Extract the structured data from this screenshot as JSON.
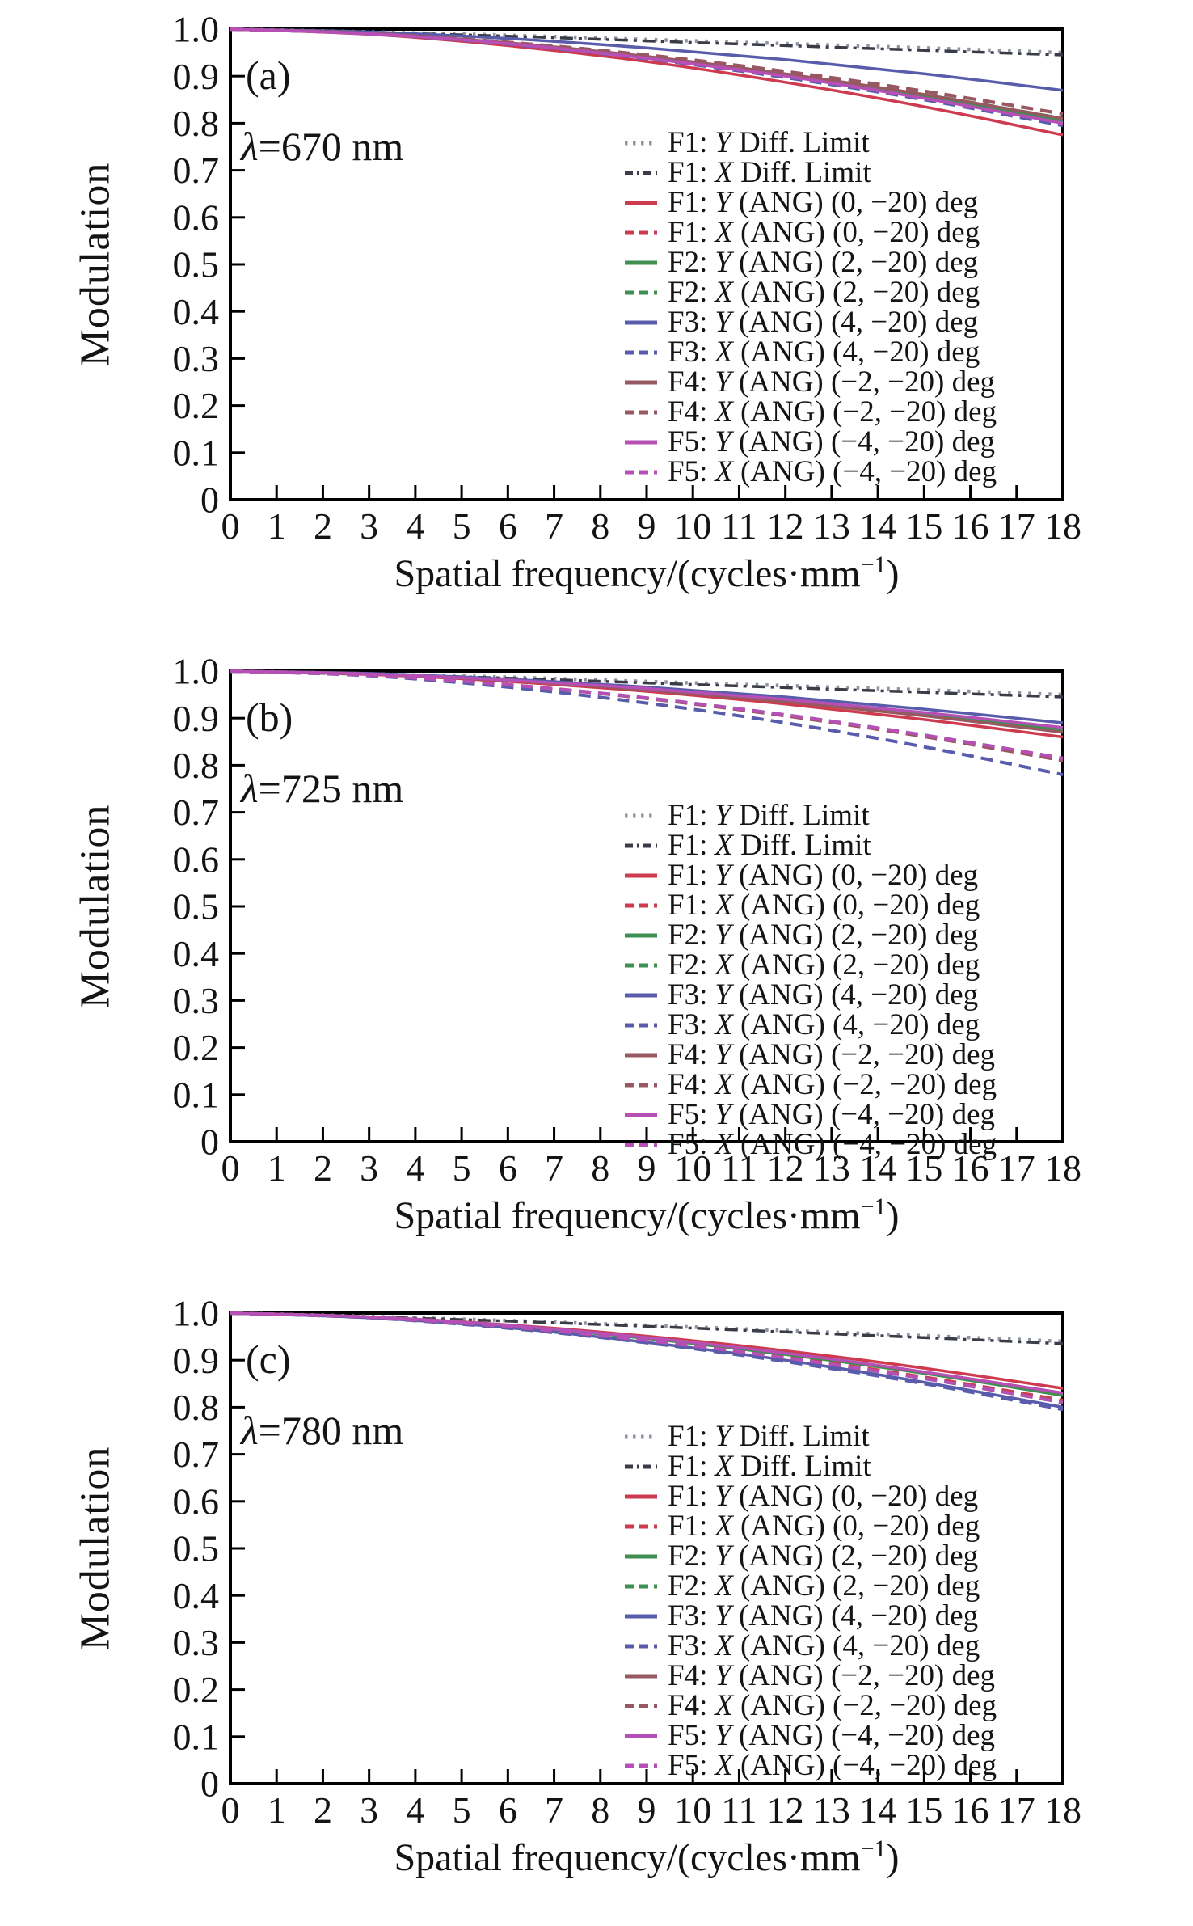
{
  "axes": {
    "y_label": "Modulation",
    "x_title_main": "Spatial frequency/(cycles·mm",
    "x_title_sup": "−1",
    "x_title_end": ")",
    "y_ticks": [
      "1.0",
      "0.9",
      "0.8",
      "0.7",
      "0.6",
      "0.5",
      "0.4",
      "0.3",
      "0.2",
      "0.1",
      "0"
    ],
    "x_ticks": [
      "0",
      "1",
      "2",
      "3",
      "4",
      "5",
      "6",
      "7",
      "8",
      "9",
      "10",
      "11",
      "12",
      "13",
      "14",
      "15",
      "16",
      "17",
      "18"
    ],
    "xlim": [
      0,
      18
    ],
    "ylim": [
      0,
      1
    ]
  },
  "legend": {
    "entries": [
      {
        "prefix": "F1:",
        "axis": "Y",
        "rest": "Diff. Limit",
        "color": "#9093a0",
        "dash": "dotted"
      },
      {
        "prefix": "F1:",
        "axis": "X",
        "rest": "Diff. Limit",
        "color": "#3a3d48",
        "dash": "dashdot"
      },
      {
        "prefix": "F1:",
        "axis": "Y",
        "rest": "(ANG) (0, −20) deg",
        "color": "#ce3a4e",
        "dash": "solid"
      },
      {
        "prefix": "F1:",
        "axis": "X",
        "rest": "(ANG) (0, −20) deg",
        "color": "#ce3a4e",
        "dash": "dashed"
      },
      {
        "prefix": "F2:",
        "axis": "Y",
        "rest": "(ANG) (2, −20) deg",
        "color": "#3f8e52",
        "dash": "solid"
      },
      {
        "prefix": "F2:",
        "axis": "X",
        "rest": "(ANG) (2, −20) deg",
        "color": "#3f8e52",
        "dash": "dashed"
      },
      {
        "prefix": "F3:",
        "axis": "Y",
        "rest": "(ANG) (4, −20) deg",
        "color": "#585cab",
        "dash": "solid"
      },
      {
        "prefix": "F3:",
        "axis": "X",
        "rest": "(ANG) (4, −20) deg",
        "color": "#585cab",
        "dash": "dashed"
      },
      {
        "prefix": "F4:",
        "axis": "Y",
        "rest": "(ANG) (−2, −20) deg",
        "color": "#975862",
        "dash": "solid"
      },
      {
        "prefix": "F4:",
        "axis": "X",
        "rest": "(ANG) (−2, −20) deg",
        "color": "#975862",
        "dash": "dashed"
      },
      {
        "prefix": "F5:",
        "axis": "Y",
        "rest": "(ANG) (−4, −20) deg",
        "color": "#b650b6",
        "dash": "solid"
      },
      {
        "prefix": "F5:",
        "axis": "X",
        "rest": "(ANG) (−4, −20) deg",
        "color": "#b650b6",
        "dash": "dashed"
      }
    ]
  },
  "chart_data": [
    {
      "type": "line",
      "panel_label": "(a)",
      "wavelength_symbol": "λ",
      "wavelength_rest": "=670 nm",
      "wavelength_nm": 670,
      "xlabel": "Spatial frequency/(cycles·mm−1)",
      "ylabel": "Modulation",
      "x": [
        0,
        3,
        6,
        9,
        12,
        15,
        18
      ],
      "xlim": [
        0,
        18
      ],
      "ylim": [
        0,
        1
      ],
      "series": [
        {
          "name": "F1: Y Diff. Limit",
          "legend_index": 0,
          "values": [
            1.0,
            0.994,
            0.987,
            0.978,
            0.969,
            0.96,
            0.95
          ]
        },
        {
          "name": "F1: X Diff. Limit",
          "legend_index": 1,
          "values": [
            1.0,
            0.993,
            0.985,
            0.975,
            0.965,
            0.955,
            0.945
          ]
        },
        {
          "name": "F1: Y (ANG) (0, −20) deg",
          "legend_index": 2,
          "values": [
            1.0,
            0.989,
            0.965,
            0.931,
            0.887,
            0.835,
            0.775
          ]
        },
        {
          "name": "F1: X (ANG) (0, −20) deg",
          "legend_index": 3,
          "values": [
            1.0,
            0.991,
            0.972,
            0.945,
            0.91,
            0.868,
            0.82
          ]
        },
        {
          "name": "F2: Y (ANG) (2, −20) deg",
          "legend_index": 4,
          "values": [
            1.0,
            0.991,
            0.97,
            0.94,
            0.902,
            0.857,
            0.805
          ]
        },
        {
          "name": "F2: X (ANG) (2, −20) deg",
          "legend_index": 5,
          "values": [
            1.0,
            0.991,
            0.971,
            0.942,
            0.905,
            0.861,
            0.81
          ]
        },
        {
          "name": "F3: Y (ANG) (4, −20) deg",
          "legend_index": 6,
          "values": [
            1.0,
            0.994,
            0.98,
            0.96,
            0.935,
            0.905,
            0.87
          ]
        },
        {
          "name": "F3: X (ANG) (4, −20) deg",
          "legend_index": 7,
          "values": [
            1.0,
            0.99,
            0.968,
            0.937,
            0.897,
            0.85,
            0.795
          ]
        },
        {
          "name": "F4: Y (ANG) (−2, −20) deg",
          "legend_index": 8,
          "values": [
            1.0,
            0.991,
            0.971,
            0.942,
            0.905,
            0.861,
            0.81
          ]
        },
        {
          "name": "F4: X (ANG) (−2, −20) deg",
          "legend_index": 9,
          "values": [
            1.0,
            0.991,
            0.972,
            0.945,
            0.91,
            0.868,
            0.82
          ]
        },
        {
          "name": "F5: Y (ANG) (−4, −20) deg",
          "legend_index": 10,
          "values": [
            1.0,
            0.99,
            0.969,
            0.938,
            0.9,
            0.853,
            0.8
          ]
        },
        {
          "name": "F5: X (ANG) (−4, −20) deg",
          "legend_index": 11,
          "values": [
            1.0,
            0.99,
            0.969,
            0.938,
            0.9,
            0.853,
            0.8
          ]
        }
      ]
    },
    {
      "type": "line",
      "panel_label": "(b)",
      "wavelength_symbol": "λ",
      "wavelength_rest": "=725 nm",
      "wavelength_nm": 725,
      "xlabel": "Spatial frequency/(cycles·mm−1)",
      "ylabel": "Modulation",
      "x": [
        0,
        3,
        6,
        9,
        12,
        15,
        18
      ],
      "xlim": [
        0,
        18
      ],
      "ylim": [
        0,
        1
      ],
      "series": [
        {
          "name": "F1: Y Diff. Limit",
          "legend_index": 0,
          "values": [
            1.0,
            0.994,
            0.987,
            0.978,
            0.969,
            0.96,
            0.95
          ]
        },
        {
          "name": "F1: X Diff. Limit",
          "legend_index": 1,
          "values": [
            1.0,
            0.993,
            0.985,
            0.975,
            0.965,
            0.955,
            0.945
          ]
        },
        {
          "name": "F1: Y (ANG) (0, −20) deg",
          "legend_index": 2,
          "values": [
            1.0,
            0.993,
            0.978,
            0.957,
            0.93,
            0.897,
            0.86
          ]
        },
        {
          "name": "F1: X (ANG) (0, −20) deg",
          "legend_index": 3,
          "values": [
            1.0,
            0.991,
            0.971,
            0.942,
            0.905,
            0.861,
            0.81
          ]
        },
        {
          "name": "F2: Y (ANG) (2, −20) deg",
          "legend_index": 4,
          "values": [
            1.0,
            0.994,
            0.981,
            0.962,
            0.937,
            0.908,
            0.875
          ]
        },
        {
          "name": "F2: X (ANG) (2, −20) deg",
          "legend_index": 5,
          "values": [
            1.0,
            0.991,
            0.971,
            0.943,
            0.907,
            0.864,
            0.815
          ]
        },
        {
          "name": "F3: Y (ANG) (4, −20) deg",
          "legend_index": 6,
          "values": [
            1.0,
            0.995,
            0.983,
            0.966,
            0.945,
            0.919,
            0.89
          ]
        },
        {
          "name": "F3: X (ANG) (4, −20) deg",
          "legend_index": 7,
          "values": [
            1.0,
            0.99,
            0.966,
            0.932,
            0.89,
            0.839,
            0.78
          ]
        },
        {
          "name": "F4: Y (ANG) (−2, −20) deg",
          "legend_index": 8,
          "values": [
            1.0,
            0.994,
            0.98,
            0.96,
            0.935,
            0.905,
            0.87
          ]
        },
        {
          "name": "F4: X (ANG) (−2, −20) deg",
          "legend_index": 9,
          "values": [
            1.0,
            0.991,
            0.971,
            0.942,
            0.905,
            0.861,
            0.81
          ]
        },
        {
          "name": "F5: Y (ANG) (−4, −20) deg",
          "legend_index": 10,
          "values": [
            1.0,
            0.994,
            0.981,
            0.963,
            0.94,
            0.912,
            0.88
          ]
        },
        {
          "name": "F5: X (ANG) (−4, −20) deg",
          "legend_index": 11,
          "values": [
            1.0,
            0.991,
            0.971,
            0.943,
            0.907,
            0.864,
            0.815
          ]
        }
      ]
    },
    {
      "type": "line",
      "panel_label": "(c)",
      "wavelength_symbol": "λ",
      "wavelength_rest": "=780 nm",
      "wavelength_nm": 780,
      "xlabel": "Spatial frequency/(cycles·mm−1)",
      "ylabel": "Modulation",
      "x": [
        0,
        3,
        6,
        9,
        12,
        15,
        18
      ],
      "xlim": [
        0,
        18
      ],
      "ylim": [
        0,
        1
      ],
      "series": [
        {
          "name": "F1: Y Diff. Limit",
          "legend_index": 0,
          "values": [
            1.0,
            0.993,
            0.984,
            0.974,
            0.963,
            0.952,
            0.94
          ]
        },
        {
          "name": "F1: X Diff. Limit",
          "legend_index": 1,
          "values": [
            1.0,
            0.992,
            0.983,
            0.972,
            0.96,
            0.948,
            0.935
          ]
        },
        {
          "name": "F1: Y (ANG) (0, −20) deg",
          "legend_index": 2,
          "values": [
            1.0,
            0.992,
            0.975,
            0.951,
            0.92,
            0.883,
            0.84
          ]
        },
        {
          "name": "F1: X (ANG) (0, −20) deg",
          "legend_index": 3,
          "values": [
            1.0,
            0.991,
            0.971,
            0.943,
            0.907,
            0.864,
            0.815
          ]
        },
        {
          "name": "F2: Y (ANG) (2, −20) deg",
          "legend_index": 4,
          "values": [
            1.0,
            0.992,
            0.973,
            0.946,
            0.912,
            0.872,
            0.825
          ]
        },
        {
          "name": "F2: X (ANG) (2, −20) deg",
          "legend_index": 5,
          "values": [
            1.0,
            0.991,
            0.971,
            0.942,
            0.905,
            0.861,
            0.81
          ]
        },
        {
          "name": "F3: Y (ANG) (4, −20) deg",
          "legend_index": 6,
          "values": [
            1.0,
            0.99,
            0.969,
            0.938,
            0.9,
            0.853,
            0.8
          ]
        },
        {
          "name": "F3: X (ANG) (4, −20) deg",
          "legend_index": 7,
          "values": [
            1.0,
            0.99,
            0.968,
            0.937,
            0.897,
            0.85,
            0.795
          ]
        },
        {
          "name": "F4: Y (ANG) (−2, −20) deg",
          "legend_index": 8,
          "values": [
            1.0,
            0.992,
            0.974,
            0.948,
            0.915,
            0.875,
            0.83
          ]
        },
        {
          "name": "F4: X (ANG) (−2, −20) deg",
          "legend_index": 9,
          "values": [
            1.0,
            0.991,
            0.971,
            0.942,
            0.905,
            0.861,
            0.81
          ]
        },
        {
          "name": "F5: Y (ANG) (−4, −20) deg",
          "legend_index": 10,
          "values": [
            1.0,
            0.992,
            0.974,
            0.948,
            0.915,
            0.875,
            0.83
          ]
        },
        {
          "name": "F5: X (ANG) (−4, −20) deg",
          "legend_index": 11,
          "values": [
            1.0,
            0.991,
            0.971,
            0.942,
            0.905,
            0.861,
            0.81
          ]
        }
      ]
    }
  ]
}
